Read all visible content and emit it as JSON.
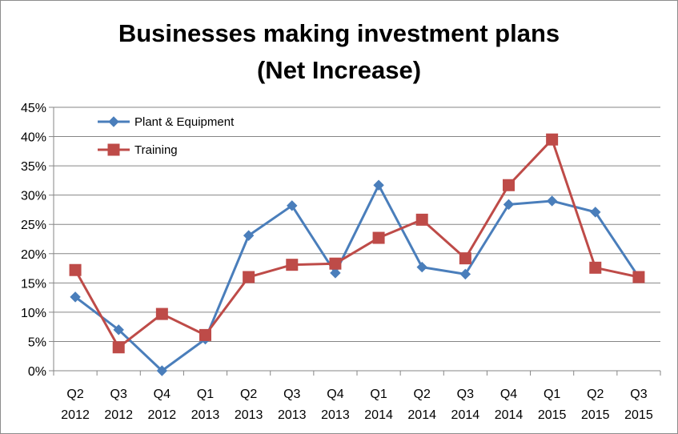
{
  "chart_data": {
    "type": "line",
    "title_line1": "Businesses making investment plans",
    "title_line2": "(Net Increase)",
    "xlabel": "",
    "ylabel": "",
    "categories": [
      [
        "Q2",
        "2012"
      ],
      [
        "Q3",
        "2012"
      ],
      [
        "Q4",
        "2012"
      ],
      [
        "Q1",
        "2013"
      ],
      [
        "Q2",
        "2013"
      ],
      [
        "Q3",
        "2013"
      ],
      [
        "Q4",
        "2013"
      ],
      [
        "Q1",
        "2014"
      ],
      [
        "Q2",
        "2014"
      ],
      [
        "Q3",
        "2014"
      ],
      [
        "Q4",
        "2014"
      ],
      [
        "Q1",
        "2015"
      ],
      [
        "Q2",
        "2015"
      ],
      [
        "Q3",
        "2015"
      ]
    ],
    "ylim": [
      0,
      45
    ],
    "yticks": [
      0,
      5,
      10,
      15,
      20,
      25,
      30,
      35,
      40,
      45
    ],
    "ytick_labels": [
      "0%",
      "5%",
      "10%",
      "15%",
      "20%",
      "25%",
      "30%",
      "35%",
      "40%",
      "45%"
    ],
    "grid": true,
    "legend_position": "top-left",
    "series": [
      {
        "name": "Plant & Equipment",
        "color": "#4a7ebb",
        "marker": "diamond",
        "values": [
          12.6,
          7.0,
          0.0,
          5.4,
          23.1,
          28.2,
          16.7,
          31.7,
          17.7,
          16.5,
          28.4,
          29.0,
          27.1,
          16.0
        ]
      },
      {
        "name": "Training",
        "color": "#be4b48",
        "marker": "square",
        "values": [
          17.2,
          4.0,
          9.7,
          6.1,
          16.0,
          18.1,
          18.3,
          22.7,
          25.8,
          19.2,
          31.7,
          39.5,
          17.6,
          16.0
        ]
      }
    ]
  }
}
